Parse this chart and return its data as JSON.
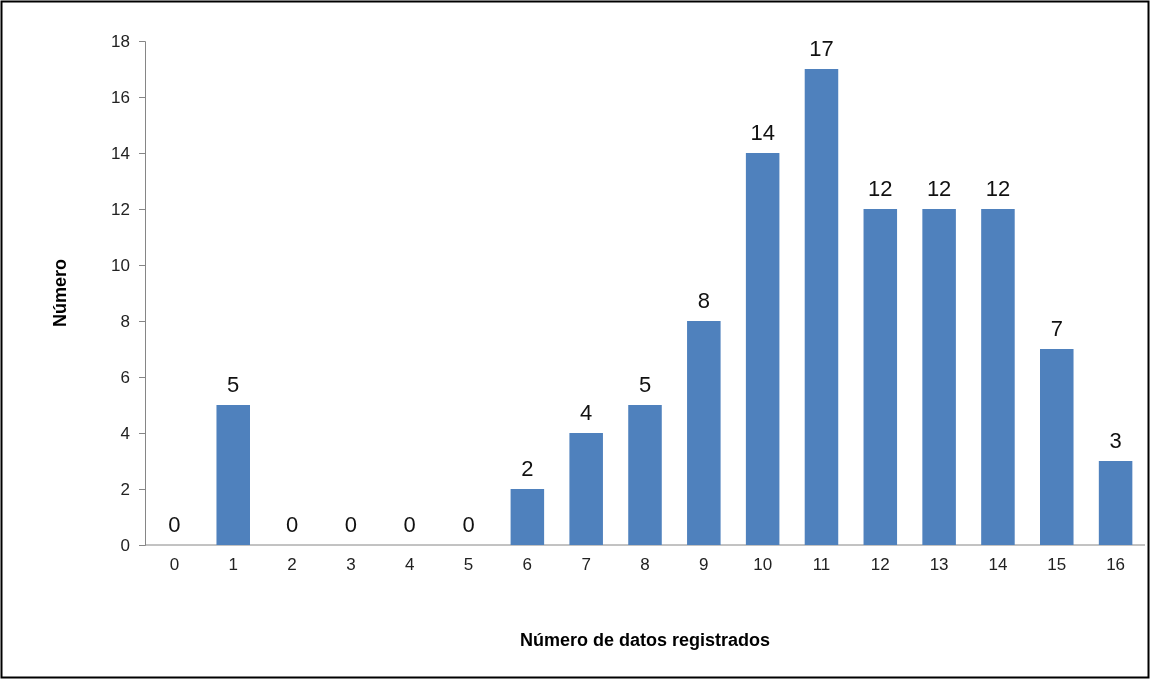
{
  "chart_data": {
    "type": "bar",
    "xlabel": "Número de datos registrados",
    "ylabel": "Número",
    "categories": [
      "0",
      "1",
      "2",
      "3",
      "4",
      "5",
      "6",
      "7",
      "8",
      "9",
      "10",
      "11",
      "12",
      "13",
      "14",
      "15",
      "16"
    ],
    "values": [
      0,
      5,
      0,
      0,
      0,
      0,
      2,
      4,
      5,
      8,
      14,
      17,
      12,
      12,
      12,
      7,
      3
    ],
    "color": "#4f81bd",
    "ylim": [
      0,
      18
    ],
    "yticks": [
      0,
      2,
      4,
      6,
      8,
      10,
      12,
      14,
      16,
      18
    ],
    "data_labels": true
  }
}
